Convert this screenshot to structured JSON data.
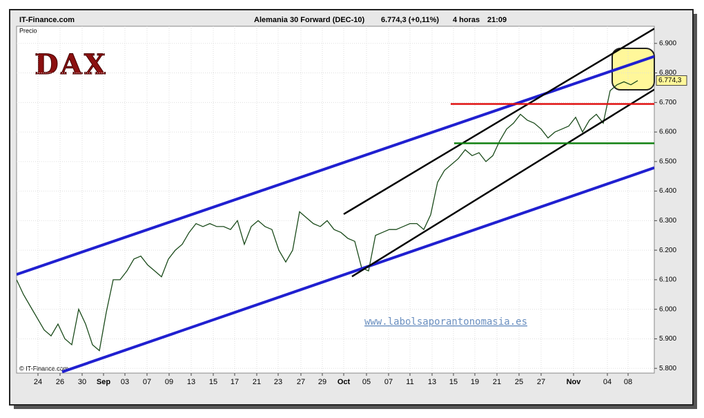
{
  "header": {
    "site": "IT-Finance.com",
    "instrument": "Alemania 30 Forward (DEC-10)",
    "quote": "6.774,3 (+0,11%)",
    "timeframe": "4 horas",
    "time": "21:09"
  },
  "chart_data": {
    "type": "line",
    "title": "DAX",
    "y_label": "Precio",
    "watermark": "www.labolsaporantonomasia.es",
    "copyright": "© IT-Finance.com",
    "color": "#1a4a1a",
    "grid": true,
    "xlim": [
      0,
      184.8
    ],
    "ylim": [
      5784,
      6958
    ],
    "yticks": [
      {
        "value": 5800,
        "label": "5.800"
      },
      {
        "value": 5900,
        "label": "5.900"
      },
      {
        "value": 6000,
        "label": "6.000"
      },
      {
        "value": 6100,
        "label": "6.100"
      },
      {
        "value": 6200,
        "label": "6.200"
      },
      {
        "value": 6300,
        "label": "6.300"
      },
      {
        "value": 6400,
        "label": "6.400"
      },
      {
        "value": 6500,
        "label": "6.500"
      },
      {
        "value": 6600,
        "label": "6.600"
      },
      {
        "value": 6700,
        "label": "6.700"
      },
      {
        "value": 6800,
        "label": "6.800"
      },
      {
        "value": 6900,
        "label": "6.900"
      }
    ],
    "xticks": [
      {
        "value": 6.2,
        "label": "24"
      },
      {
        "value": 12.6,
        "label": "26"
      },
      {
        "value": 19,
        "label": "30"
      },
      {
        "value": 25.2,
        "label": "Sep"
      },
      {
        "value": 31.4,
        "label": "03"
      },
      {
        "value": 37.8,
        "label": "07"
      },
      {
        "value": 44.2,
        "label": "09"
      },
      {
        "value": 50.6,
        "label": "13"
      },
      {
        "value": 57,
        "label": "15"
      },
      {
        "value": 63.2,
        "label": "17"
      },
      {
        "value": 69.6,
        "label": "21"
      },
      {
        "value": 75.8,
        "label": "23"
      },
      {
        "value": 82.4,
        "label": "27"
      },
      {
        "value": 88.6,
        "label": "29"
      },
      {
        "value": 94.8,
        "label": "Oct"
      },
      {
        "value": 101.4,
        "label": "05"
      },
      {
        "value": 107.8,
        "label": "07"
      },
      {
        "value": 114,
        "label": "11"
      },
      {
        "value": 120.4,
        "label": "13"
      },
      {
        "value": 126.6,
        "label": "15"
      },
      {
        "value": 132.8,
        "label": "19"
      },
      {
        "value": 139.2,
        "label": "21"
      },
      {
        "value": 145.6,
        "label": "25"
      },
      {
        "value": 152,
        "label": "27"
      },
      {
        "value": 161.4,
        "label": "Nov"
      },
      {
        "value": 171.2,
        "label": "04"
      },
      {
        "value": 177.2,
        "label": "08"
      }
    ],
    "x": [
      0,
      2,
      4,
      6,
      8,
      10,
      12,
      14,
      16,
      18,
      20,
      22,
      24,
      26,
      28,
      30,
      32,
      34,
      36,
      38,
      40,
      42,
      44,
      46,
      48,
      50,
      52,
      54,
      56,
      58,
      60,
      62,
      64,
      66,
      68,
      70,
      72,
      74,
      76,
      78,
      80,
      82,
      84,
      86,
      88,
      90,
      92,
      94,
      96,
      98,
      100,
      102,
      104,
      106,
      108,
      110,
      112,
      114,
      116,
      118,
      120,
      122,
      124,
      126,
      128,
      130,
      132,
      134,
      136,
      138,
      140,
      142,
      144,
      146,
      148,
      150,
      152,
      154,
      156,
      158,
      160,
      162,
      164,
      166,
      168,
      170,
      172,
      174,
      176,
      178,
      180
    ],
    "values": [
      6100,
      6050,
      6010,
      5970,
      5930,
      5910,
      5950,
      5900,
      5880,
      6000,
      5950,
      5880,
      5860,
      5990,
      6100,
      6100,
      6130,
      6170,
      6180,
      6150,
      6130,
      6110,
      6170,
      6200,
      6220,
      6260,
      6290,
      6280,
      6290,
      6280,
      6280,
      6270,
      6300,
      6220,
      6280,
      6300,
      6280,
      6270,
      6200,
      6160,
      6200,
      6330,
      6310,
      6290,
      6280,
      6300,
      6270,
      6260,
      6240,
      6230,
      6140,
      6130,
      6250,
      6260,
      6270,
      6270,
      6280,
      6290,
      6290,
      6270,
      6320,
      6430,
      6470,
      6490,
      6510,
      6540,
      6520,
      6530,
      6500,
      6520,
      6570,
      6610,
      6630,
      6660,
      6640,
      6630,
      6610,
      6580,
      6600,
      6610,
      6620,
      6650,
      6600,
      6640,
      6660,
      6630,
      6740,
      6760,
      6770,
      6760,
      6774
    ],
    "last_price": {
      "value": 6774.3,
      "label": "6.774,3"
    },
    "reference_lines": [
      {
        "x": [
          0,
          184.8
        ],
        "y": [
          6118,
          6856
        ],
        "color": "#2020d0"
      },
      {
        "x": [
          13.2,
          184.8
        ],
        "y": [
          5788,
          6479
        ],
        "color": "#2020d0"
      },
      {
        "x": [
          94.8,
          184.8
        ],
        "y": [
          6322,
          6950
        ],
        "color": "#000000"
      },
      {
        "x": [
          97.2,
          184.8
        ],
        "y": [
          6111,
          6744
        ],
        "color": "#000000"
      },
      {
        "x": [
          125.8,
          184.8
        ],
        "y": [
          6695,
          6695
        ],
        "color": "#e01010"
      },
      {
        "x": [
          126.8,
          184.8
        ],
        "y": [
          6562,
          6562
        ],
        "color": "#108010"
      }
    ]
  }
}
